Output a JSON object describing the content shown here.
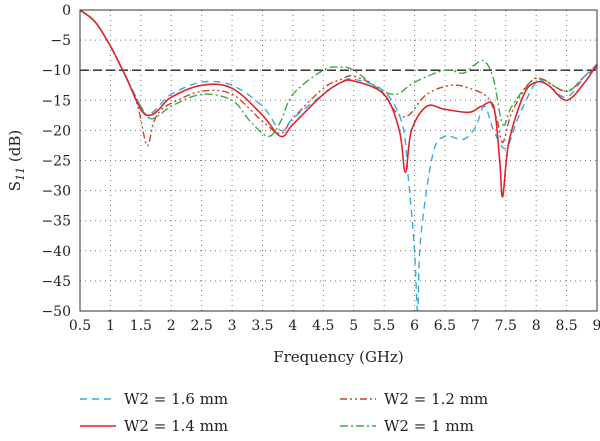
{
  "chart_data": {
    "type": "line",
    "xlabel": "Frequency (GHz)",
    "ylabel_main": "S",
    "ylabel_sub": "11",
    "ylabel_unit": " (dB)",
    "xlim": [
      0.5,
      9
    ],
    "ylim": [
      -50,
      0
    ],
    "x_ticks": [
      0.5,
      1,
      1.5,
      2,
      2.5,
      3,
      3.5,
      4,
      4.5,
      5,
      5.5,
      6,
      6.5,
      7,
      7.5,
      8,
      8.5,
      9
    ],
    "y_ticks": [
      0,
      -5,
      -10,
      -15,
      -20,
      -25,
      -30,
      -35,
      -40,
      -45,
      -50
    ],
    "x_tick_labels": [
      "0.5",
      "1",
      "1.5",
      "2",
      "2.5",
      "3",
      "3.5",
      "4",
      "4.5",
      "5",
      "5.5",
      "6",
      "6.5",
      "7",
      "7.5",
      "8",
      "8.5",
      "9"
    ],
    "y_tick_labels": [
      "0",
      "−5",
      "−10",
      "−15",
      "−20",
      "−25",
      "−30",
      "−35",
      "−40",
      "−45",
      "−50"
    ],
    "grid": "dotted",
    "legend_position": "bottom",
    "reference_line": {
      "y": -10,
      "style": "dashed",
      "color": "#222222"
    },
    "series": [
      {
        "name": "W2 = 1.6 mm",
        "color": "#3aa9df",
        "dash": "7,5",
        "x": [
          0.5,
          0.75,
          1.0,
          1.25,
          1.5,
          1.6,
          1.75,
          2.0,
          2.5,
          3.0,
          3.5,
          3.8,
          4.0,
          4.5,
          4.8,
          5.0,
          5.5,
          5.8,
          5.9,
          6.0,
          6.05,
          6.1,
          6.3,
          6.5,
          6.8,
          7.0,
          7.15,
          7.3,
          7.5,
          7.7,
          8.0,
          8.2,
          8.5,
          8.8,
          9.0
        ],
        "y": [
          0,
          -2,
          -6,
          -11,
          -16,
          -17.5,
          -16.5,
          -14,
          -12,
          -12.5,
          -16,
          -20,
          -18,
          -14,
          -12,
          -11.5,
          -13.5,
          -19,
          -28,
          -40,
          -50,
          -38,
          -24,
          -21,
          -21.5,
          -19.5,
          -16,
          -20,
          -23,
          -18,
          -12,
          -12.5,
          -14.5,
          -11,
          -9
        ]
      },
      {
        "name": "W2 = 1.4 mm",
        "color": "#e0242b",
        "dash": "",
        "x": [
          0.5,
          0.75,
          1.0,
          1.25,
          1.5,
          1.65,
          1.8,
          2.0,
          2.5,
          3.0,
          3.5,
          3.8,
          4.0,
          4.5,
          4.8,
          5.0,
          5.5,
          5.75,
          5.85,
          5.95,
          6.2,
          6.5,
          6.9,
          7.1,
          7.3,
          7.4,
          7.45,
          7.55,
          7.8,
          8.0,
          8.2,
          8.5,
          8.8,
          9.0
        ],
        "y": [
          0,
          -2,
          -6,
          -11,
          -16.5,
          -17.5,
          -16.5,
          -14.5,
          -12.5,
          -13,
          -17.5,
          -21,
          -19,
          -14,
          -12,
          -11.8,
          -14,
          -20,
          -27,
          -20,
          -16,
          -16.5,
          -17,
          -16,
          -16,
          -25,
          -31,
          -22,
          -14,
          -12,
          -12.5,
          -15,
          -12,
          -9
        ]
      },
      {
        "name": "W2 = 1.2 mm",
        "color": "#c0492b",
        "dash": "7,3,2,3,2,3",
        "x": [
          0.5,
          0.75,
          1.0,
          1.25,
          1.45,
          1.6,
          1.7,
          1.8,
          2.0,
          2.5,
          3.0,
          3.5,
          3.8,
          4.0,
          4.5,
          4.8,
          5.0,
          5.4,
          5.7,
          5.9,
          6.2,
          6.6,
          6.9,
          7.2,
          7.35,
          7.45,
          7.6,
          7.9,
          8.1,
          8.5,
          8.8,
          9.0
        ],
        "y": [
          0,
          -2,
          -6,
          -11,
          -16,
          -22.5,
          -19,
          -17,
          -15.5,
          -13.5,
          -14,
          -18.5,
          -20.5,
          -18,
          -13,
          -11.5,
          -11,
          -13,
          -17,
          -17.5,
          -14,
          -12.5,
          -13,
          -14.5,
          -18,
          -22,
          -17,
          -12,
          -11.5,
          -13.5,
          -11,
          -9.5
        ]
      },
      {
        "name": "W2 = 1 mm",
        "color": "#3dab43",
        "dash": "8,3,2,3",
        "x": [
          0.5,
          0.75,
          1.0,
          1.25,
          1.5,
          1.65,
          1.8,
          2.0,
          2.5,
          3.0,
          3.3,
          3.6,
          3.8,
          4.0,
          4.5,
          4.8,
          5.0,
          5.4,
          5.7,
          6.0,
          6.5,
          6.8,
          7.0,
          7.15,
          7.3,
          7.45,
          7.6,
          7.9,
          8.1,
          8.5,
          8.8,
          9.0
        ],
        "y": [
          0,
          -2,
          -6,
          -11,
          -16,
          -18,
          -17.5,
          -16,
          -14,
          -15,
          -18.5,
          -21,
          -18.5,
          -14,
          -10,
          -9.5,
          -10,
          -13,
          -14,
          -12,
          -10,
          -10.5,
          -9,
          -8.5,
          -11.5,
          -19,
          -16,
          -12,
          -11.5,
          -13.5,
          -11,
          -9.5
        ]
      }
    ]
  }
}
